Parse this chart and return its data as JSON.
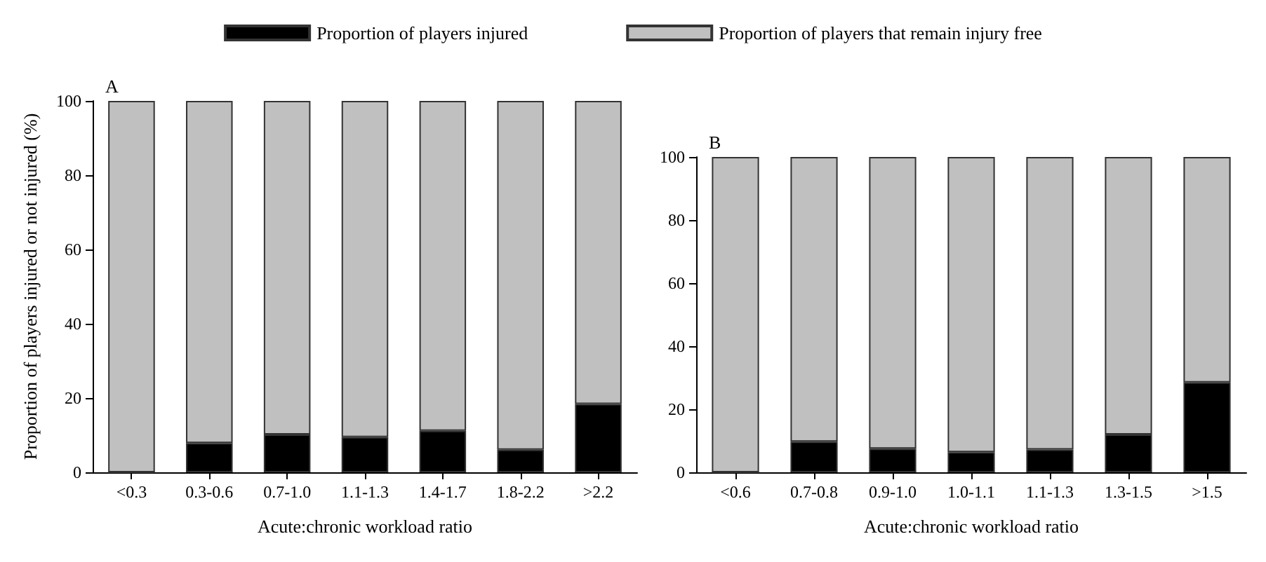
{
  "chart_data": [
    {
      "type": "bar",
      "title": "A",
      "xlabel": "Acute:chronic workload ratio",
      "ylabel": "Proportion of players injured or not injured (%)",
      "categories": [
        "<0.3",
        "0.3-0.6",
        "0.7-1.0",
        "1.1-1.3",
        "1.4-1.7",
        "1.8-2.2",
        ">2.2"
      ],
      "stacked": true,
      "legend": "top",
      "ylim": [
        0,
        100
      ],
      "yticks": [
        0,
        20,
        40,
        60,
        80,
        100
      ],
      "grid": false,
      "series": [
        {
          "name": "Proportion of players injured",
          "color": "#000000",
          "values": [
            0,
            7.9,
            10.2,
            9.5,
            11.2,
            6.1,
            18.4
          ]
        },
        {
          "name": "Proportion of players that remain injury free",
          "color": "#c0c0c0",
          "values": [
            100,
            92.1,
            89.8,
            90.5,
            88.8,
            93.9,
            81.6
          ]
        }
      ]
    },
    {
      "type": "bar",
      "title": "B",
      "xlabel": "Acute:chronic workload ratio",
      "categories": [
        "<0.6",
        "0.7-0.8",
        "0.9-1.0",
        "1.0-1.1",
        "1.1-1.3",
        "1.3-1.5",
        ">1.5"
      ],
      "stacked": true,
      "ylim": [
        0,
        100
      ],
      "yticks": [
        0,
        20,
        40,
        60,
        80,
        100
      ],
      "grid": false,
      "series": [
        {
          "color": "#000000",
          "values": [
            0,
            9.7,
            7.5,
            6.4,
            7.2,
            12.0,
            28.5
          ]
        },
        {
          "color": "#c0c0c0",
          "values": [
            100,
            90.3,
            92.5,
            93.6,
            92.8,
            88.0,
            71.5
          ]
        }
      ]
    }
  ]
}
